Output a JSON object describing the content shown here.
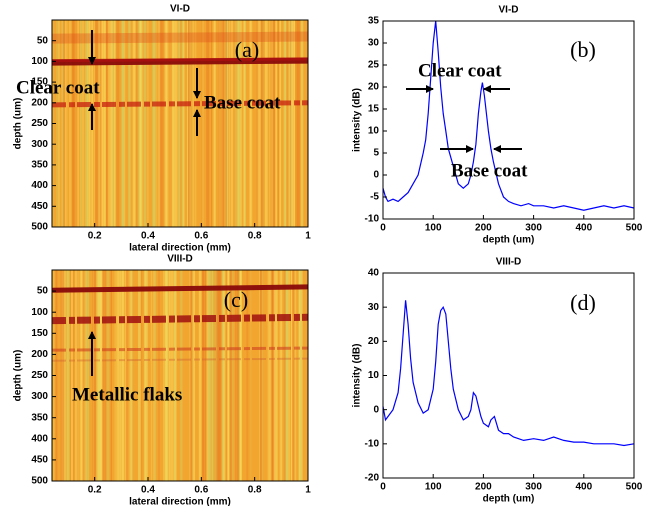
{
  "chart_data": [
    {
      "type": "image",
      "title": "VI-D",
      "xlabel": "lateral direction (mm)",
      "ylabel": "depth (um)",
      "invert_y": true,
      "xlim": [
        0.04,
        1
      ],
      "xticks": [
        0.2,
        0.4,
        0.6,
        0.8,
        1
      ],
      "ylim": [
        0,
        500
      ],
      "yticks": [
        50,
        100,
        150,
        200,
        250,
        300,
        350,
        400,
        450,
        500
      ],
      "annotations": [
        "(a)",
        "Clear coat",
        "Base coat"
      ]
    },
    {
      "type": "line",
      "title": "VI-D",
      "xlabel": "depth (um)",
      "ylabel": "intensity (dB)",
      "xlim": [
        0,
        500
      ],
      "xticks": [
        0,
        100,
        200,
        300,
        400,
        500
      ],
      "ylim": [
        -10,
        35
      ],
      "yticks": [
        -10,
        -5,
        0,
        5,
        10,
        15,
        20,
        25,
        30,
        35
      ],
      "color": "#0000ff",
      "x": [
        0,
        5,
        10,
        20,
        30,
        40,
        50,
        60,
        70,
        80,
        85,
        90,
        95,
        100,
        105,
        110,
        115,
        120,
        125,
        130,
        140,
        150,
        160,
        170,
        175,
        180,
        185,
        190,
        195,
        198,
        202,
        206,
        210,
        215,
        220,
        230,
        240,
        250,
        260,
        275,
        290,
        300,
        320,
        340,
        360,
        380,
        400,
        420,
        440,
        460,
        480,
        500
      ],
      "values": [
        -3,
        -5,
        -6,
        -5.5,
        -6,
        -5,
        -4,
        -2,
        0,
        5,
        8,
        14,
        22,
        30,
        35,
        28,
        20,
        14,
        10,
        6,
        2,
        -2,
        -3,
        -2,
        0,
        3,
        7,
        14,
        19,
        21,
        18,
        14,
        10,
        6,
        3,
        -2,
        -5,
        -6,
        -6.5,
        -7,
        -6.5,
        -7,
        -7,
        -7.5,
        -7,
        -7.5,
        -8,
        -7.5,
        -7,
        -7.5,
        -7,
        -7.5
      ],
      "annotations": [
        "(b)",
        "Clear coat",
        "Base coat"
      ]
    },
    {
      "type": "image",
      "title": "VIII-D",
      "xlabel": "lateral direction (mm)",
      "ylabel": "depth (um)",
      "invert_y": true,
      "xlim": [
        0.04,
        1
      ],
      "xticks": [
        0.2,
        0.4,
        0.6,
        0.8,
        1
      ],
      "ylim": [
        0,
        500
      ],
      "yticks": [
        50,
        100,
        150,
        200,
        250,
        300,
        350,
        400,
        450,
        500
      ],
      "annotations": [
        "(c)",
        "Metallic flaks"
      ]
    },
    {
      "type": "line",
      "title": "VIII-D",
      "xlabel": "depth (um)",
      "ylabel": "intensity (dB)",
      "xlim": [
        0,
        500
      ],
      "xticks": [
        0,
        100,
        200,
        300,
        400,
        500
      ],
      "ylim": [
        -20,
        40
      ],
      "yticks": [
        -20,
        -10,
        0,
        10,
        20,
        30,
        40
      ],
      "color": "#0000ff",
      "x": [
        0,
        5,
        10,
        20,
        30,
        35,
        40,
        45,
        50,
        55,
        60,
        70,
        80,
        90,
        100,
        105,
        110,
        115,
        120,
        125,
        130,
        135,
        140,
        150,
        160,
        170,
        175,
        180,
        185,
        190,
        195,
        200,
        210,
        215,
        222,
        230,
        240,
        250,
        260,
        280,
        300,
        320,
        340,
        360,
        380,
        400,
        420,
        440,
        460,
        480,
        500
      ],
      "values": [
        1,
        -3,
        -2,
        0,
        5,
        12,
        22,
        32,
        25,
        15,
        8,
        2,
        -1,
        0,
        6,
        14,
        25,
        29,
        30,
        28,
        20,
        12,
        6,
        0,
        -3,
        -2,
        0,
        5,
        4,
        1,
        -2,
        -4,
        -5,
        -3,
        -2,
        -6,
        -7,
        -7,
        -8,
        -9,
        -8.5,
        -9,
        -8,
        -9,
        -9.5,
        -9.5,
        -10,
        -10,
        -10,
        -10.5,
        -10
      ],
      "annotations": [
        "(d)"
      ]
    }
  ]
}
